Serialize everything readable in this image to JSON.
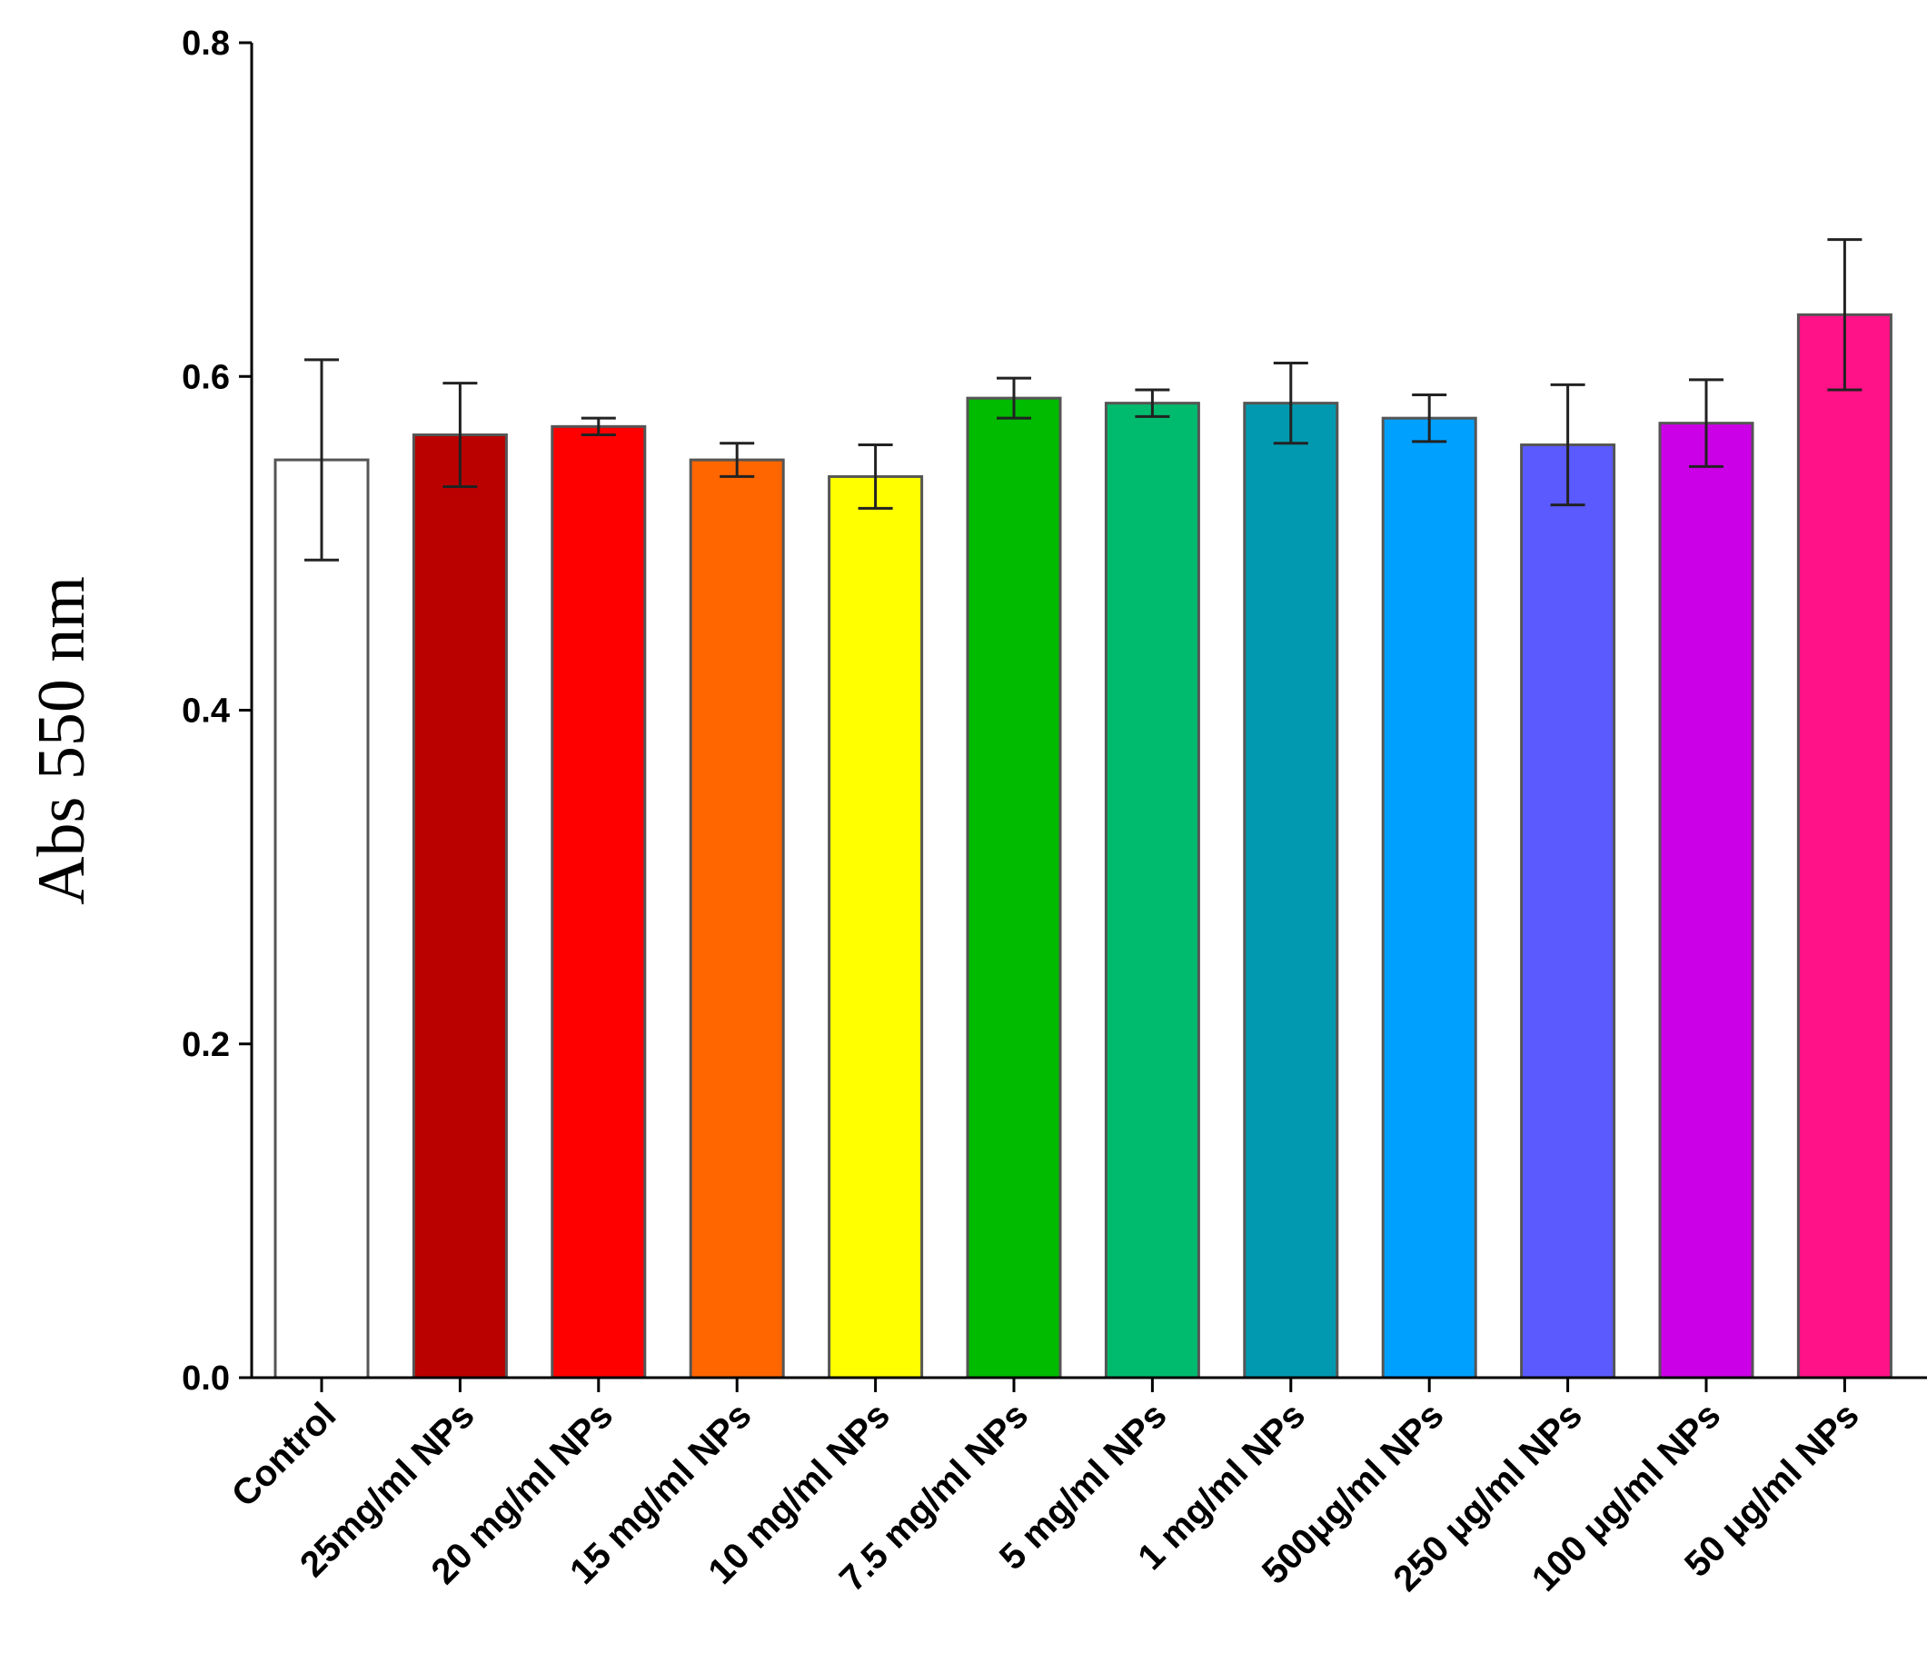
{
  "chart_data": {
    "type": "bar",
    "title": "",
    "xlabel": "",
    "ylabel": "Abs 550 nm",
    "ylim": [
      0,
      0.8
    ],
    "yticks": [
      "0.0",
      "0.2",
      "0.4",
      "0.6",
      "0.8"
    ],
    "categories": [
      "Control",
      "25mg/ml NPs",
      "20 mg/ml NPs",
      "15 mg/ml NPs",
      "10 mg/ml NPs",
      "7.5 mg/ml NPs",
      "5 mg/ml NPs",
      "1 mg/ml NPs",
      "500μg/ml NPs",
      "250 μg/ml NPs",
      "100 μg/ml NPs",
      "50 μg/ml NPs"
    ],
    "values": [
      0.55,
      0.565,
      0.57,
      0.55,
      0.54,
      0.587,
      0.584,
      0.584,
      0.575,
      0.559,
      0.572,
      0.637
    ],
    "errors": [
      0.06,
      0.031,
      0.005,
      0.01,
      0.019,
      0.012,
      0.008,
      0.024,
      0.014,
      0.036,
      0.026,
      0.045
    ],
    "colors": [
      "#ffffff",
      "#bb0000",
      "#ff0000",
      "#ff6600",
      "#ffff00",
      "#00bb00",
      "#00bb6e",
      "#0099b0",
      "#00a0ff",
      "#5a5aff",
      "#cc00e6",
      "#ff1188"
    ]
  }
}
